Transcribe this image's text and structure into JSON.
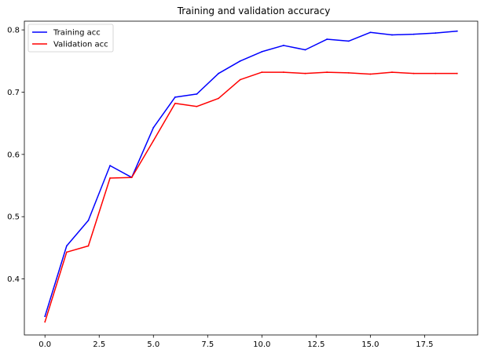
{
  "chart_data": {
    "type": "line",
    "title": "Training and validation accuracy",
    "xlabel": "",
    "ylabel": "",
    "xlim": [
      -0.95,
      19.95
    ],
    "ylim": [
      0.31,
      0.814
    ],
    "xticks": [
      0.0,
      2.5,
      5.0,
      7.5,
      10.0,
      12.5,
      15.0,
      17.5
    ],
    "xtick_labels": [
      "0.0",
      "2.5",
      "5.0",
      "7.5",
      "10.0",
      "12.5",
      "15.0",
      "17.5"
    ],
    "yticks": [
      0.4,
      0.5,
      0.6,
      0.7,
      0.8
    ],
    "ytick_labels": [
      "0.4",
      "0.5",
      "0.6",
      "0.7",
      "0.8"
    ],
    "grid": false,
    "legend_position": "top-left",
    "x": [
      0,
      1,
      2,
      3,
      4,
      5,
      6,
      7,
      8,
      9,
      10,
      11,
      12,
      13,
      14,
      15,
      16,
      17,
      18,
      19
    ],
    "series": [
      {
        "name": "Training acc",
        "color": "#0000ff",
        "values": [
          0.34,
          0.453,
          0.494,
          0.582,
          0.563,
          0.643,
          0.692,
          0.697,
          0.73,
          0.75,
          0.765,
          0.775,
          0.768,
          0.785,
          0.782,
          0.796,
          0.792,
          0.793,
          0.795,
          0.798
        ]
      },
      {
        "name": "Validation acc",
        "color": "#ff0000",
        "values": [
          0.331,
          0.443,
          0.453,
          0.562,
          0.563,
          0.622,
          0.682,
          0.677,
          0.69,
          0.72,
          0.732,
          0.732,
          0.73,
          0.732,
          0.731,
          0.729,
          0.732,
          0.73,
          0.73,
          0.73
        ]
      }
    ]
  }
}
